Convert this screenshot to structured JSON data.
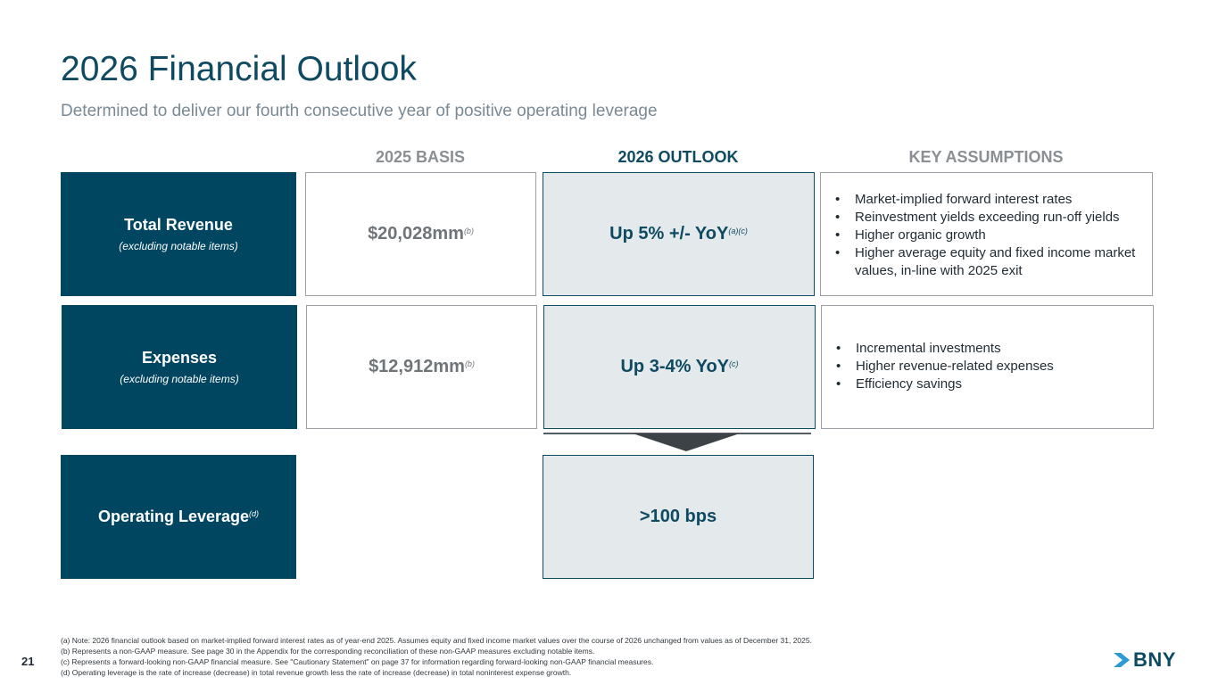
{
  "header": {
    "title": "2026 Financial Outlook",
    "subtitle": "Determined to deliver our fourth consecutive year of positive operating leverage"
  },
  "columns": {
    "basis": "2025 BASIS",
    "outlook": "2026 OUTLOOK",
    "assumptions": "KEY ASSUMPTIONS"
  },
  "rows": {
    "revenue": {
      "label": "Total Revenue",
      "sublabel": "(excluding notable items)",
      "basis": "$20,028mm",
      "basis_note": "(b)",
      "outlook": "Up 5% +/- YoY",
      "outlook_note": "(a)(c)",
      "assumptions": [
        "Market-implied forward interest rates",
        "Reinvestment yields exceeding run-off yields",
        "Higher organic growth",
        "Higher average equity and fixed income market values, in-line with 2025 exit"
      ]
    },
    "expenses": {
      "label": "Expenses",
      "sublabel": "(excluding notable items)",
      "basis": "$12,912mm",
      "basis_note": "(b)",
      "outlook": "Up 3-4% YoY",
      "outlook_note": "(c)",
      "assumptions": [
        "Incremental investments",
        "Higher revenue-related expenses",
        "Efficiency savings"
      ]
    },
    "leverage": {
      "label": "Operating Leverage",
      "label_note": "(d)",
      "outlook": ">100 bps"
    }
  },
  "bullet": "•",
  "footnotes": [
    "(a) Note: 2026 financial outlook based on market-implied forward interest rates as of year-end 2025. Assumes equity and fixed income market values over the course of 2026 unchanged from values as of December 31, 2025.",
    "(b) Represents a non-GAAP measure. See page 30 in the Appendix for the corresponding reconciliation of these non-GAAP measures excluding notable items.",
    "(c) Represents a forward-looking non-GAAP financial measure. See \"Cautionary Statement\" on page 37 for information regarding forward-looking non-GAAP financial measures.",
    "(d) Operating leverage is the rate of increase (decrease) in total revenue growth less the rate of increase (decrease) in total noninterest expense growth."
  ],
  "page_number": "21",
  "logo_text": "BNY",
  "colors": {
    "brand": "#004660",
    "outlook_fill": "#e4eaec",
    "muted": "#8a8f94"
  }
}
